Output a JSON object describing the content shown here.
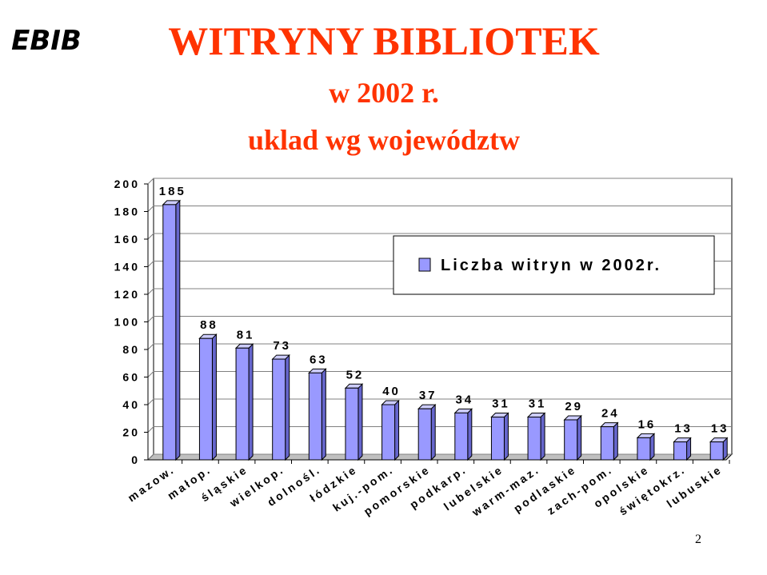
{
  "logo": "EBIB",
  "page_number": "2",
  "chart_data": {
    "type": "bar3d",
    "title": "WITRYNY BIBLIOTEK",
    "subtitle": [
      "w 2002 r.",
      "uklad wg województw"
    ],
    "categories": [
      "mazow.",
      "małop.",
      "śląskie",
      "wielkop.",
      "dolnośl.",
      "łódzkie",
      "kuj.-pom.",
      "pomorskie",
      "podkarp.",
      "lubelskie",
      "warm-maz.",
      "podlaskie",
      "zach-pom.",
      "opolskie",
      "świętokrz.",
      "lubuskie"
    ],
    "series": [
      {
        "name": "Liczba witryn w 2002r.",
        "color": "#9999ff",
        "values": [
          185,
          88,
          81,
          73,
          63,
          52,
          40,
          37,
          34,
          31,
          31,
          29,
          24,
          16,
          13,
          13
        ]
      }
    ],
    "ylim": [
      0,
      200
    ],
    "yticks": [
      0,
      20,
      40,
      60,
      80,
      100,
      120,
      140,
      160,
      180,
      200
    ],
    "grid": true
  }
}
